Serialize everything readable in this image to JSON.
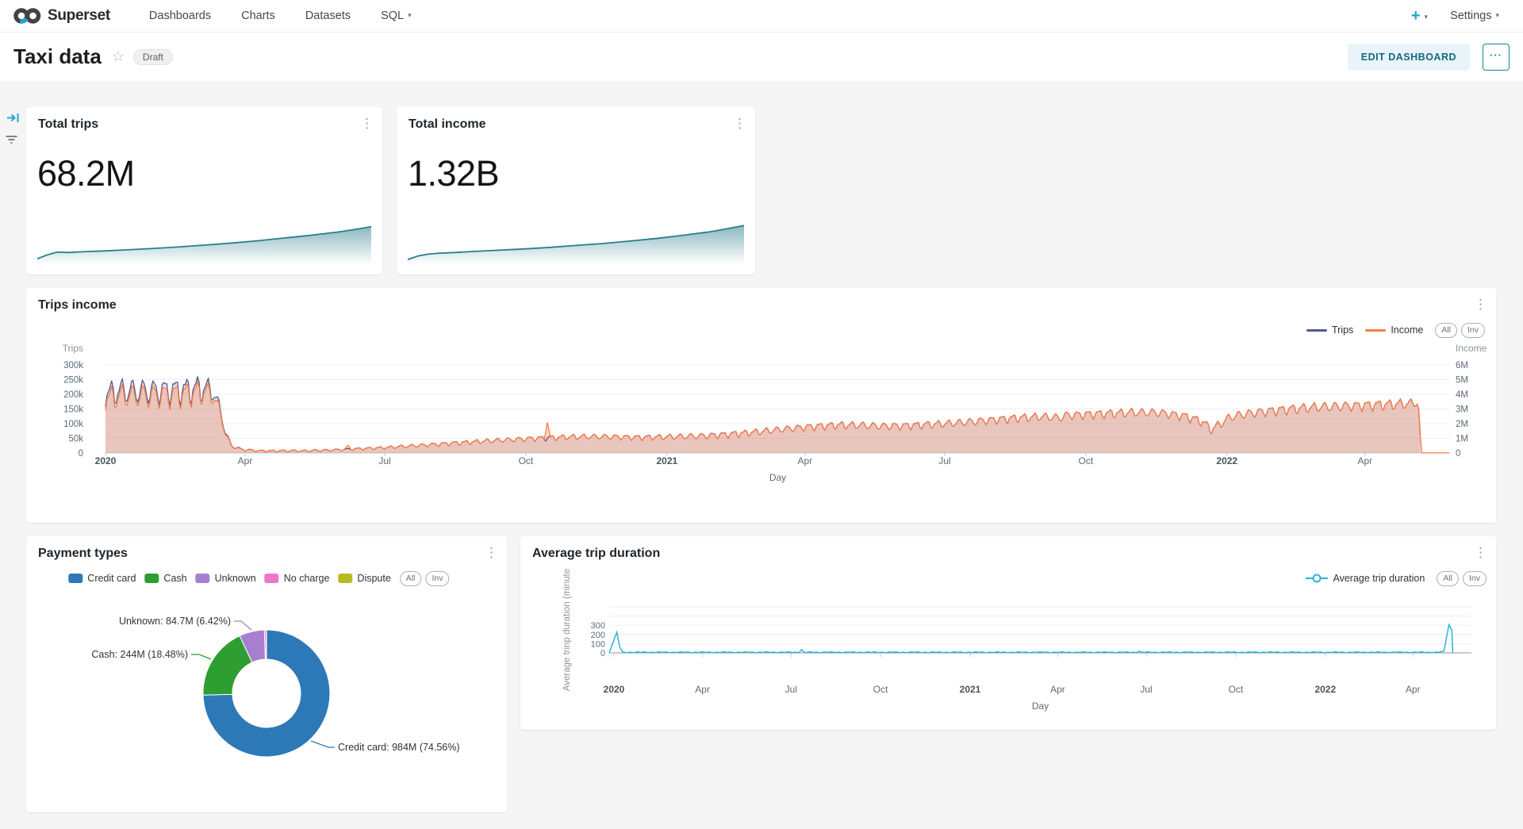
{
  "nav": {
    "brand": "Superset",
    "items": [
      {
        "label": "Dashboards"
      },
      {
        "label": "Charts"
      },
      {
        "label": "Datasets"
      },
      {
        "label": "SQL",
        "has_caret": true
      }
    ],
    "plus": "+",
    "settings": "Settings"
  },
  "icons": {
    "caret": "▾",
    "kebab": "⋮",
    "star": "☆",
    "more": "···",
    "plus": "+"
  },
  "header": {
    "title": "Taxi data",
    "draft_badge": "Draft",
    "edit_button": "EDIT DASHBOARD"
  },
  "colors": {
    "accent_teal": "#20a7c9",
    "spark_teal": "#2a7d8c",
    "trips_blue": "#4d5a92",
    "income_orange": "#fc7b41",
    "duration_cyan": "#2ab5d8",
    "panel_bg": "#ffffff",
    "canvas_bg": "#f5f5f5"
  },
  "chart_data": [
    {
      "id": "total-trips-trend",
      "type": "area",
      "title": "Total trips",
      "big_number": "68.2M",
      "color": "#2a7d8c",
      "x": [
        0,
        0.03,
        0.06,
        0.09,
        0.14,
        0.2,
        0.27,
        0.34,
        0.42,
        0.5,
        0.58,
        0.66,
        0.74,
        0.82,
        0.9,
        0.96,
        1
      ],
      "y": [
        0.1,
        0.2,
        0.27,
        0.26,
        0.28,
        0.3,
        0.33,
        0.36,
        0.4,
        0.45,
        0.5,
        0.56,
        0.63,
        0.7,
        0.78,
        0.86,
        0.92
      ]
    },
    {
      "id": "total-income-trend",
      "type": "area",
      "title": "Total income",
      "big_number": "1.32B",
      "color": "#2a7d8c",
      "x": [
        0,
        0.03,
        0.06,
        0.09,
        0.14,
        0.2,
        0.27,
        0.34,
        0.42,
        0.5,
        0.58,
        0.66,
        0.74,
        0.82,
        0.9,
        0.96,
        1
      ],
      "y": [
        0.08,
        0.17,
        0.22,
        0.24,
        0.26,
        0.29,
        0.32,
        0.35,
        0.39,
        0.44,
        0.49,
        0.55,
        0.62,
        0.7,
        0.79,
        0.88,
        0.95
      ]
    },
    {
      "id": "trips-income",
      "type": "line",
      "title": "Trips income",
      "series": [
        {
          "name": "Trips",
          "color": "#4d5a92",
          "axis": "left"
        },
        {
          "name": "Income",
          "color": "#fc7b41",
          "axis": "right"
        }
      ],
      "legend_buttons": [
        "All",
        "Inv"
      ],
      "x_axis": {
        "label": "Day",
        "ticks": [
          {
            "label": "2020",
            "day": 0,
            "bold": true
          },
          {
            "label": "Apr",
            "day": 91
          },
          {
            "label": "Jul",
            "day": 182
          },
          {
            "label": "Oct",
            "day": 274
          },
          {
            "label": "2021",
            "day": 366,
            "bold": true
          },
          {
            "label": "Apr",
            "day": 456
          },
          {
            "label": "Jul",
            "day": 547
          },
          {
            "label": "Oct",
            "day": 639
          },
          {
            "label": "2022",
            "day": 731,
            "bold": true
          },
          {
            "label": "Apr",
            "day": 821
          }
        ]
      },
      "left_axis": {
        "title": "Trips",
        "labels": [
          "300k",
          "250k",
          "200k",
          "150k",
          "100k",
          "50k",
          "0"
        ],
        "max": 300000
      },
      "right_axis": {
        "title": "Income",
        "labels": [
          "6M",
          "5M",
          "4M",
          "3M",
          "2M",
          "1M",
          "0"
        ],
        "max": 6000000
      },
      "trips_envelope": [
        [
          0,
          195
        ],
        [
          10,
          205
        ],
        [
          30,
          205
        ],
        [
          50,
          208
        ],
        [
          64,
          215
        ],
        [
          70,
          205
        ],
        [
          74,
          160
        ],
        [
          78,
          70
        ],
        [
          82,
          25
        ],
        [
          88,
          12
        ],
        [
          100,
          7
        ],
        [
          130,
          7
        ],
        [
          150,
          10
        ],
        [
          165,
          14
        ],
        [
          180,
          17
        ],
        [
          195,
          22
        ],
        [
          210,
          27
        ],
        [
          225,
          32
        ],
        [
          240,
          37
        ],
        [
          255,
          42
        ],
        [
          270,
          46
        ],
        [
          285,
          50
        ],
        [
          300,
          53
        ],
        [
          315,
          55
        ],
        [
          330,
          54
        ],
        [
          345,
          52
        ],
        [
          360,
          53
        ],
        [
          375,
          55
        ],
        [
          390,
          57
        ],
        [
          405,
          62
        ],
        [
          420,
          68
        ],
        [
          435,
          76
        ],
        [
          450,
          84
        ],
        [
          465,
          90
        ],
        [
          478,
          94
        ],
        [
          492,
          93
        ],
        [
          505,
          90
        ],
        [
          520,
          91
        ],
        [
          535,
          95
        ],
        [
          550,
          99
        ],
        [
          565,
          105
        ],
        [
          580,
          112
        ],
        [
          595,
          118
        ],
        [
          610,
          122
        ],
        [
          622,
          118
        ],
        [
          626,
          126
        ],
        [
          640,
          130
        ],
        [
          655,
          133
        ],
        [
          670,
          136
        ],
        [
          685,
          136
        ],
        [
          695,
          130
        ],
        [
          705,
          122
        ],
        [
          715,
          105
        ],
        [
          721,
          78
        ],
        [
          726,
          95
        ],
        [
          733,
          120
        ],
        [
          740,
          128
        ],
        [
          750,
          136
        ],
        [
          762,
          143
        ],
        [
          775,
          149
        ],
        [
          790,
          154
        ],
        [
          805,
          157
        ],
        [
          820,
          160
        ],
        [
          835,
          163
        ],
        [
          850,
          166
        ],
        [
          855,
          167
        ],
        [
          856,
          150
        ],
        [
          857,
          60
        ],
        [
          858,
          3
        ]
      ],
      "weekly_amplitude": [
        [
          0,
          38
        ],
        [
          64,
          40
        ],
        [
          70,
          30
        ],
        [
          76,
          12
        ],
        [
          82,
          6
        ],
        [
          95,
          3
        ],
        [
          140,
          3
        ],
        [
          180,
          4
        ],
        [
          220,
          6
        ],
        [
          260,
          7
        ],
        [
          300,
          8
        ],
        [
          345,
          8
        ],
        [
          390,
          9
        ],
        [
          435,
          10
        ],
        [
          480,
          11
        ],
        [
          535,
          11
        ],
        [
          595,
          12
        ],
        [
          655,
          13
        ],
        [
          715,
          13
        ],
        [
          760,
          14
        ],
        [
          820,
          15
        ],
        [
          852,
          15
        ],
        [
          855,
          4
        ],
        [
          858,
          0
        ]
      ],
      "weekly_pattern": [
        -1,
        -0.2,
        0.5,
        0.85,
        1,
        0.6,
        -0.6
      ],
      "income_ratio": [
        [
          0,
          0.92
        ],
        [
          70,
          0.94
        ],
        [
          150,
          0.98
        ],
        [
          250,
          1.0
        ],
        [
          400,
          0.99
        ],
        [
          550,
          1.0
        ],
        [
          858,
          1.0
        ]
      ],
      "income_spikes": [
        [
          158,
          26
        ],
        [
          288,
          104
        ]
      ],
      "trips_end_day": 857,
      "income_end_day": 876
    },
    {
      "id": "payment-types",
      "type": "pie",
      "title": "Payment types",
      "legend_buttons": [
        "All",
        "Inv"
      ],
      "slices": [
        {
          "label": "Credit card",
          "value": "984M",
          "pct": 74.56,
          "color": "#2d79b7",
          "callout": "Credit card: 984M (74.56%)"
        },
        {
          "label": "Cash",
          "value": "244M",
          "pct": 18.48,
          "color": "#2f9e32",
          "callout": "Cash: 244M (18.48%)"
        },
        {
          "label": "Unknown",
          "value": "84.7M",
          "pct": 6.42,
          "color": "#a87fd0",
          "callout": "Unknown: 84.7M (6.42%)"
        },
        {
          "label": "No charge",
          "pct": 0.45,
          "color": "#ec77c7"
        },
        {
          "label": "Dispute",
          "pct": 0.09,
          "color": "#b9ba21"
        }
      ]
    },
    {
      "id": "avg-trip-duration",
      "type": "line",
      "title": "Average trip duration",
      "series": [
        {
          "name": "Average trip duration",
          "color": "#2ab5d8"
        }
      ],
      "legend_buttons": [
        "All",
        "Inv"
      ],
      "y_axis": {
        "title": "Average trinp duration (minute",
        "labels": [
          "300",
          "200",
          "100",
          "0"
        ],
        "grid_max": 500
      },
      "x_axis": {
        "label": "Day",
        "ticks": [
          {
            "label": "2020",
            "day": 0,
            "bold": true
          },
          {
            "label": "Apr",
            "day": 91
          },
          {
            "label": "Jul",
            "day": 182
          },
          {
            "label": "Oct",
            "day": 274
          },
          {
            "label": "2021",
            "day": 366,
            "bold": true
          },
          {
            "label": "Apr",
            "day": 456
          },
          {
            "label": "Jul",
            "day": 547
          },
          {
            "label": "Oct",
            "day": 639
          },
          {
            "label": "2022",
            "day": 731,
            "bold": true
          },
          {
            "label": "Apr",
            "day": 821
          }
        ]
      },
      "start_spike": [
        [
          -5,
          0
        ],
        [
          3,
          225
        ],
        [
          6,
          60
        ],
        [
          9,
          12
        ]
      ],
      "baseline_level": 6.5,
      "minor_spikes": [
        [
          193,
          35
        ],
        [
          540,
          18
        ]
      ],
      "end_spike": [
        [
          848,
          8
        ],
        [
          853,
          20
        ],
        [
          858,
          305
        ],
        [
          861,
          250
        ],
        [
          862,
          0
        ]
      ]
    }
  ]
}
